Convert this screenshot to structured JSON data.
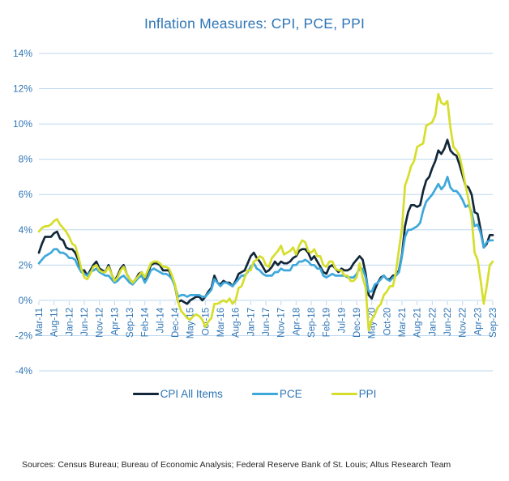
{
  "title": "Inflation Measures: CPI, PCE, PPI",
  "footer": "Sources: Census Bureau; Bureau of Economic Analysis; Federal Reserve Bank of St. Louis; Altus Research Team",
  "colors": {
    "title_text": "#2E75B6",
    "axis_text": "#2E75B6",
    "legend_text": "#2E75B6",
    "gridline": "#BDD7EE",
    "footer_text": "#262626",
    "background": "#FFFFFF"
  },
  "chart_data": {
    "type": "line",
    "title": "Inflation Measures: CPI, PCE, PPI",
    "x_start": "Mar-11",
    "x_end": "Sep-23",
    "frequency": "monthly",
    "x_tick_interval": 5,
    "x_tick_labels": [
      "Mar-11",
      "Aug-11",
      "Jan-12",
      "Jun-12",
      "Nov-12",
      "Apr-13",
      "Sep-13",
      "Feb-14",
      "Jul-14",
      "Dec-14",
      "May-15",
      "Oct-15",
      "Mar-16",
      "Aug-16",
      "Jan-17",
      "Jun-17",
      "Nov-17",
      "Apr-18",
      "Sep-18",
      "Feb-19",
      "Jul-19",
      "Dec-19",
      "May-20",
      "Oct-20",
      "Mar-21",
      "Aug-21",
      "Jan-22",
      "Jun-22",
      "Nov-22",
      "Apr-23",
      "Sep-23"
    ],
    "ylim": [
      -4,
      14
    ],
    "y_tick_values": [
      14,
      12,
      10,
      8,
      6,
      4,
      2,
      0,
      -2,
      -4
    ],
    "y_tick_labels": [
      "14%",
      "12%",
      "10%",
      "8%",
      "6%",
      "4%",
      "2%",
      "0%",
      "-2%",
      "-4%"
    ],
    "grid": true,
    "legend_position": "bottom",
    "series": [
      {
        "name": "CPI All Items",
        "color": "#12283A",
        "values": [
          2.7,
          3.2,
          3.6,
          3.6,
          3.6,
          3.8,
          3.9,
          3.5,
          3.4,
          3.0,
          2.9,
          2.9,
          2.7,
          2.3,
          1.7,
          1.7,
          1.4,
          1.7,
          2.0,
          2.2,
          1.8,
          1.7,
          1.6,
          2.0,
          1.5,
          1.1,
          1.4,
          1.8,
          2.0,
          1.5,
          1.2,
          1.0,
          1.2,
          1.5,
          1.6,
          1.1,
          1.5,
          2.0,
          2.1,
          2.1,
          2.0,
          1.7,
          1.7,
          1.7,
          1.3,
          0.8,
          -0.1,
          0.0,
          -0.1,
          -0.2,
          0.0,
          0.1,
          0.2,
          0.2,
          0.0,
          0.2,
          0.5,
          0.7,
          1.4,
          1.0,
          0.9,
          1.1,
          1.0,
          1.0,
          0.8,
          1.1,
          1.5,
          1.6,
          1.7,
          2.1,
          2.5,
          2.7,
          2.4,
          2.2,
          1.9,
          1.6,
          1.7,
          1.9,
          2.2,
          2.0,
          2.2,
          2.1,
          2.1,
          2.2,
          2.4,
          2.5,
          2.8,
          2.9,
          2.9,
          2.7,
          2.3,
          2.5,
          2.2,
          1.9,
          1.6,
          1.5,
          1.9,
          2.0,
          1.8,
          1.6,
          1.8,
          1.7,
          1.7,
          1.8,
          2.1,
          2.3,
          2.5,
          2.3,
          1.5,
          0.3,
          0.1,
          0.6,
          1.0,
          1.3,
          1.4,
          1.2,
          1.2,
          1.4,
          1.4,
          1.7,
          2.6,
          4.2,
          5.0,
          5.4,
          5.4,
          5.3,
          5.4,
          6.2,
          6.8,
          7.0,
          7.5,
          7.9,
          8.5,
          8.3,
          8.6,
          9.1,
          8.5,
          8.3,
          8.2,
          7.7,
          7.1,
          6.5,
          6.4,
          6.0,
          5.0,
          4.9,
          4.0,
          3.0,
          3.2,
          3.7,
          3.7
        ]
      },
      {
        "name": "PCE",
        "color": "#3EA8DB",
        "values": [
          2.1,
          2.3,
          2.5,
          2.6,
          2.7,
          2.9,
          2.9,
          2.7,
          2.7,
          2.6,
          2.4,
          2.4,
          2.3,
          1.9,
          1.6,
          1.5,
          1.4,
          1.6,
          1.7,
          1.8,
          1.6,
          1.5,
          1.4,
          1.4,
          1.2,
          1.0,
          1.1,
          1.3,
          1.4,
          1.2,
          1.0,
          0.9,
          1.1,
          1.3,
          1.4,
          1.0,
          1.3,
          1.7,
          1.8,
          1.7,
          1.6,
          1.5,
          1.5,
          1.4,
          1.2,
          0.8,
          0.2,
          0.3,
          0.3,
          0.2,
          0.3,
          0.3,
          0.3,
          0.3,
          0.2,
          0.2,
          0.4,
          0.6,
          1.2,
          1.0,
          0.8,
          1.0,
          1.0,
          0.9,
          0.8,
          1.0,
          1.2,
          1.4,
          1.4,
          1.6,
          1.9,
          2.1,
          1.8,
          1.7,
          1.5,
          1.4,
          1.4,
          1.4,
          1.6,
          1.6,
          1.8,
          1.7,
          1.7,
          1.7,
          2.0,
          2.0,
          2.2,
          2.2,
          2.3,
          2.2,
          2.0,
          2.0,
          1.8,
          1.8,
          1.4,
          1.3,
          1.4,
          1.5,
          1.4,
          1.4,
          1.4,
          1.4,
          1.3,
          1.3,
          1.3,
          1.5,
          1.8,
          1.8,
          1.3,
          0.5,
          0.5,
          0.9,
          1.0,
          1.2,
          1.4,
          1.2,
          1.1,
          1.3,
          1.4,
          1.6,
          2.5,
          3.6,
          4.0,
          4.0,
          4.1,
          4.2,
          4.4,
          5.1,
          5.6,
          5.8,
          6.0,
          6.3,
          6.6,
          6.3,
          6.5,
          7.0,
          6.4,
          6.2,
          6.2,
          6.0,
          5.7,
          5.3,
          5.4,
          5.0,
          4.2,
          4.3,
          3.8,
          3.0,
          3.3,
          3.4,
          3.4
        ]
      },
      {
        "name": "PPI",
        "color": "#D6DE2B",
        "values": [
          3.9,
          4.1,
          4.2,
          4.2,
          4.3,
          4.5,
          4.6,
          4.3,
          4.1,
          3.9,
          3.6,
          3.2,
          3.1,
          2.5,
          1.8,
          1.3,
          1.2,
          1.5,
          1.9,
          2.0,
          1.7,
          1.6,
          1.6,
          1.9,
          1.5,
          1.1,
          1.3,
          1.7,
          1.9,
          1.5,
          1.2,
          1.0,
          1.2,
          1.4,
          1.6,
          1.3,
          1.7,
          2.1,
          2.2,
          2.2,
          2.1,
          1.9,
          1.9,
          1.8,
          1.4,
          0.9,
          -0.1,
          -0.6,
          -0.8,
          -1.0,
          -1.1,
          -0.9,
          -0.8,
          -0.9,
          -1.1,
          -1.5,
          -1.2,
          -1.0,
          -0.2,
          -0.2,
          -0.1,
          0.0,
          -0.1,
          0.1,
          -0.2,
          0.0,
          0.7,
          0.8,
          1.3,
          1.7,
          1.7,
          2.2,
          2.3,
          2.5,
          2.4,
          2.0,
          1.9,
          2.4,
          2.6,
          2.8,
          3.1,
          2.6,
          2.7,
          2.8,
          3.0,
          2.6,
          3.1,
          3.4,
          3.3,
          2.8,
          2.7,
          2.9,
          2.5,
          2.5,
          2.0,
          1.9,
          2.2,
          2.2,
          1.8,
          1.7,
          1.7,
          1.4,
          1.4,
          1.1,
          1.1,
          1.3,
          2.1,
          1.3,
          0.7,
          -1.7,
          -1.1,
          -0.8,
          -0.4,
          -0.2,
          0.3,
          0.5,
          0.8,
          0.8,
          1.6,
          2.9,
          4.1,
          6.5,
          7.0,
          7.6,
          7.9,
          8.7,
          8.8,
          8.9,
          9.9,
          10.0,
          10.1,
          10.5,
          11.7,
          11.2,
          11.1,
          11.3,
          9.8,
          8.7,
          8.5,
          8.2,
          7.4,
          6.5,
          5.7,
          4.7,
          2.7,
          2.3,
          1.1,
          -0.2,
          0.8,
          2.0,
          2.2
        ]
      }
    ]
  }
}
